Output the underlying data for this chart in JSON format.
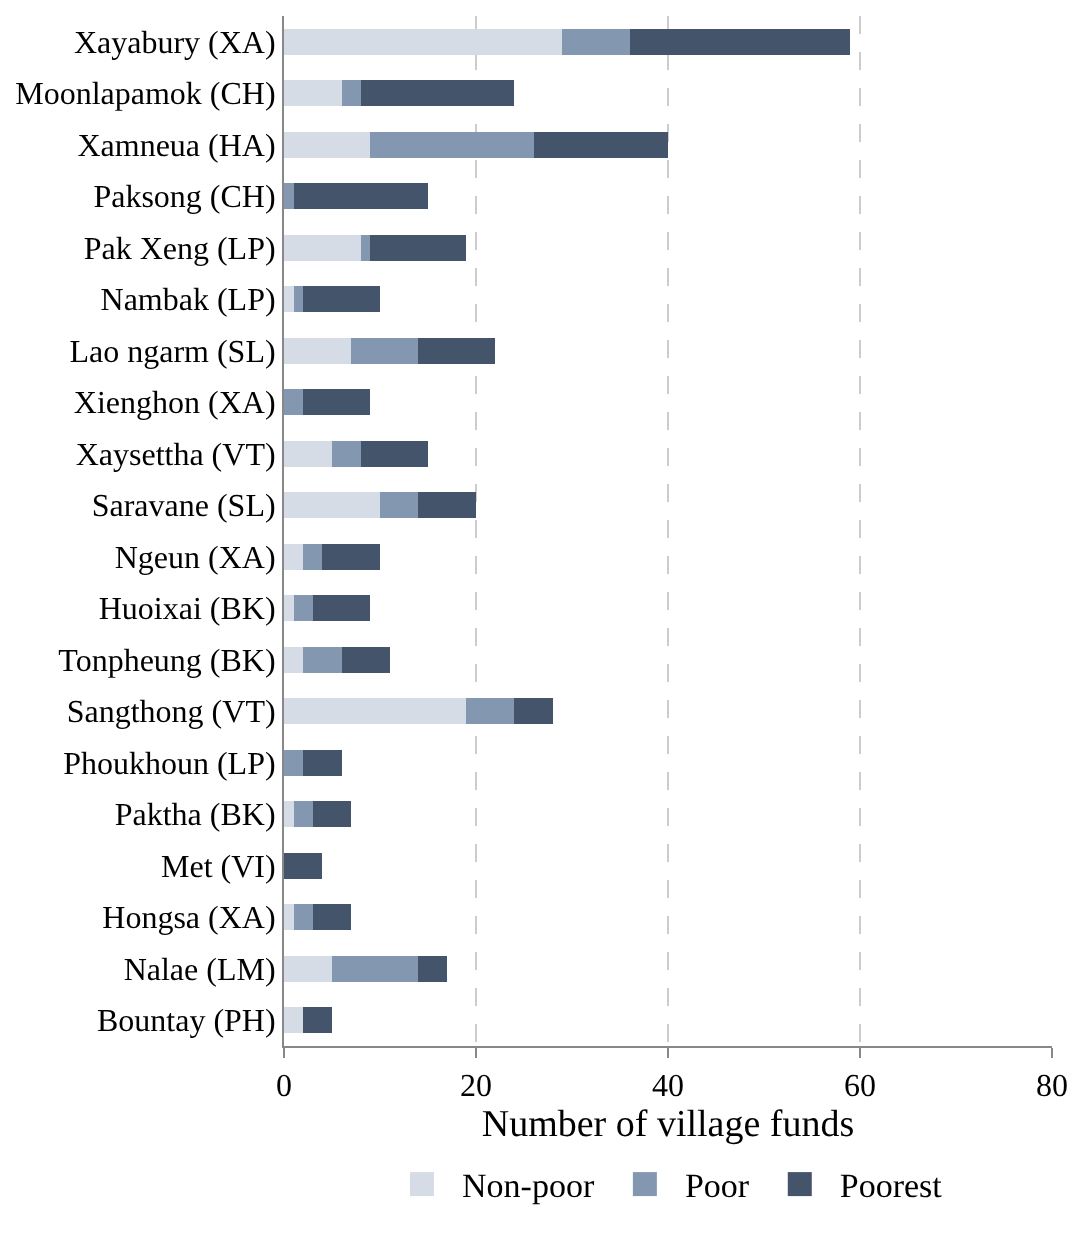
{
  "chart_data": {
    "type": "bar",
    "orientation": "horizontal",
    "stacked": true,
    "xlabel": "Number of village funds",
    "categories": [
      "Xayabury (XA)",
      "Moonlapamok (CH)",
      "Xamneua (HA)",
      "Paksong (CH)",
      "Pak Xeng (LP)",
      "Nambak (LP)",
      "Lao ngarm (SL)",
      "Xienghon (XA)",
      "Xaysettha (VT)",
      "Saravane (SL)",
      "Ngeun (XA)",
      "Huoixai (BK)",
      "Tonpheung (BK)",
      "Sangthong (VT)",
      "Phoukhoun (LP)",
      "Paktha (BK)",
      "Met (VI)",
      "Hongsa (XA)",
      "Nalae (LM)",
      "Bountay (PH)"
    ],
    "series": [
      {
        "name": "Non-poor",
        "color": "#d6dce5",
        "values": [
          29,
          6,
          9,
          0,
          8,
          1,
          7,
          0,
          5,
          10,
          2,
          1,
          2,
          19,
          0,
          1,
          0,
          1,
          5,
          2
        ]
      },
      {
        "name": "Poor",
        "color": "#8497b0",
        "values": [
          7,
          2,
          17,
          1,
          1,
          1,
          7,
          2,
          3,
          4,
          2,
          2,
          4,
          5,
          2,
          2,
          0,
          2,
          9,
          0
        ]
      },
      {
        "name": "Poorest",
        "color": "#44546a",
        "values": [
          23,
          16,
          14,
          14,
          10,
          8,
          8,
          7,
          7,
          6,
          6,
          6,
          5,
          4,
          4,
          4,
          4,
          4,
          3,
          3
        ]
      }
    ],
    "xlim": [
      0,
      80
    ],
    "xticks": [
      0,
      20,
      40,
      60,
      80
    ],
    "grid": "x",
    "legend": "bottom"
  }
}
